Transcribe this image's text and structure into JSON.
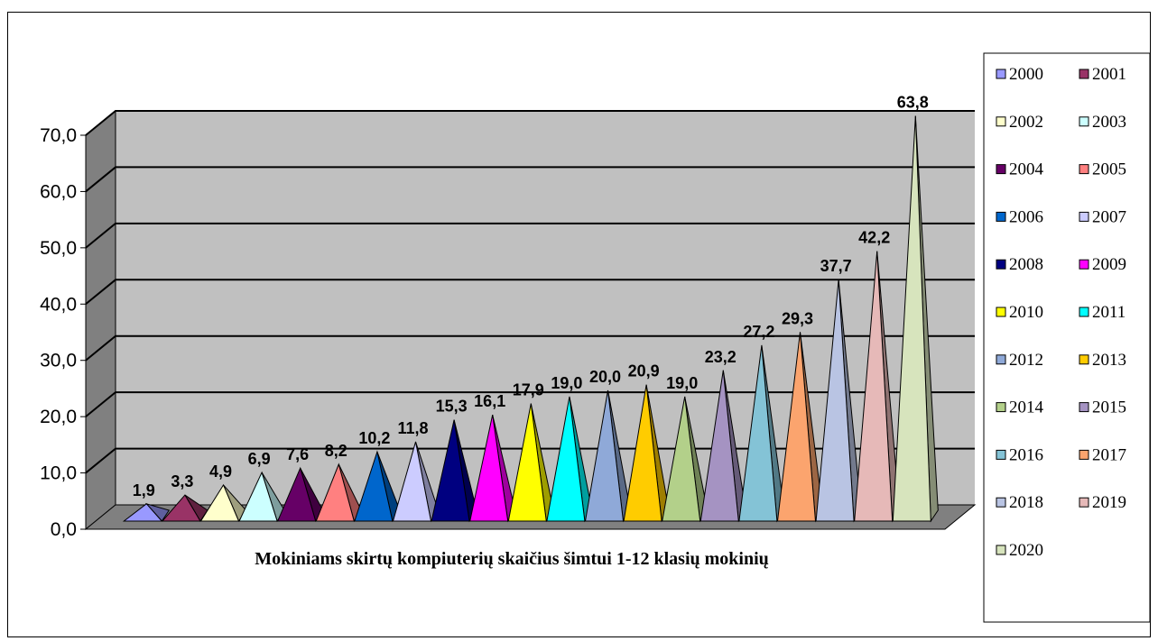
{
  "chart_data": {
    "type": "bar",
    "title": "",
    "xlabel": "Mokiniams skirtų kompiuterių skaičius šimtui 1-12 klasių mokinių",
    "ylabel": "",
    "ylim": [
      0,
      70
    ],
    "yticks": [
      "0,0",
      "10,0",
      "20,0",
      "30,0",
      "40,0",
      "50,0",
      "60,0",
      "70,0"
    ],
    "grid": true,
    "legend_position": "right",
    "series": [
      {
        "name": "2000",
        "value": 1.9,
        "label": "1,9",
        "color": "#9999ff"
      },
      {
        "name": "2001",
        "value": 3.3,
        "label": "3,3",
        "color": "#993366"
      },
      {
        "name": "2002",
        "value": 4.9,
        "label": "4,9",
        "color": "#ffffcc"
      },
      {
        "name": "2003",
        "value": 6.9,
        "label": "6,9",
        "color": "#ccffff"
      },
      {
        "name": "2004",
        "value": 7.6,
        "label": "7,6",
        "color": "#660066"
      },
      {
        "name": "2005",
        "value": 8.2,
        "label": "8,2",
        "color": "#ff8080"
      },
      {
        "name": "2006",
        "value": 10.2,
        "label": "10,2",
        "color": "#0066cc"
      },
      {
        "name": "2007",
        "value": 11.8,
        "label": "11,8",
        "color": "#ccccff"
      },
      {
        "name": "2008",
        "value": 15.3,
        "label": "15,3",
        "color": "#000080"
      },
      {
        "name": "2009",
        "value": 16.1,
        "label": "16,1",
        "color": "#ff00ff"
      },
      {
        "name": "2010",
        "value": 17.9,
        "label": "17,9",
        "color": "#ffff00"
      },
      {
        "name": "2011",
        "value": 19.0,
        "label": "19,0",
        "color": "#00ffff"
      },
      {
        "name": "2012",
        "value": 20.0,
        "label": "20,0",
        "color": "#8fa9d8"
      },
      {
        "name": "2013",
        "value": 20.9,
        "label": "20,9",
        "color": "#ffcc00"
      },
      {
        "name": "2014",
        "value": 19.0,
        "label": "19,0",
        "color": "#b3d08a"
      },
      {
        "name": "2015",
        "value": 23.2,
        "label": "23,2",
        "color": "#a593c2"
      },
      {
        "name": "2016",
        "value": 27.2,
        "label": "27,2",
        "color": "#84c3d6"
      },
      {
        "name": "2017",
        "value": 29.3,
        "label": "29,3",
        "color": "#fba46e"
      },
      {
        "name": "2018",
        "value": 37.7,
        "label": "37,7",
        "color": "#b9c4e3"
      },
      {
        "name": "2019",
        "value": 42.2,
        "label": "42,2",
        "color": "#e6b9b8"
      },
      {
        "name": "2020",
        "value": 63.8,
        "label": "63,8",
        "color": "#d7e4bd"
      }
    ]
  }
}
